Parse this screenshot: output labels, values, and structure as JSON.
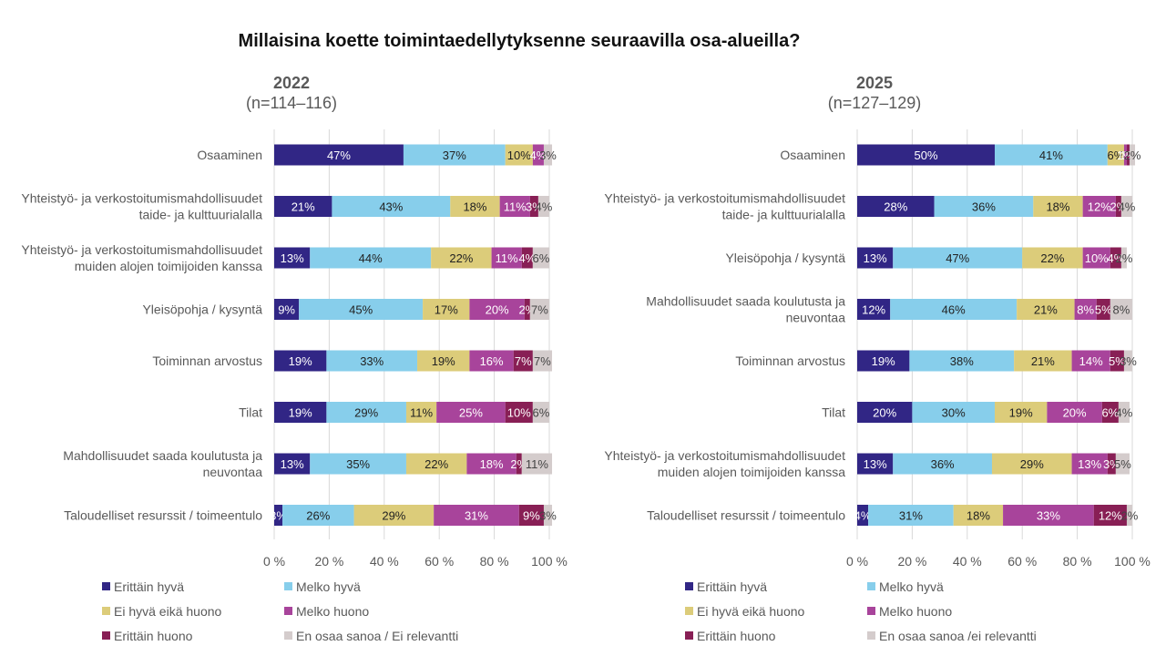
{
  "title": "Millaisina koette toimintaedellytyksenne seuraavilla osa-alueilla?",
  "chart_data": [
    {
      "type": "bar",
      "orientation": "horizontal",
      "stacked": "percent",
      "title": "2022",
      "subtitle": "(n=114–116)",
      "xlim": [
        0,
        100
      ],
      "x_ticks": [
        "0 %",
        "20 %",
        "40 %",
        "60 %",
        "80 %",
        "100 %"
      ],
      "grid": true,
      "legend_position": "bottom",
      "categories": [
        "Osaaminen",
        "Yhteistyö- ja verkostoitumismahdollisuudet taide- ja kulttuurialalla",
        "Yhteistyö- ja verkostoitumismahdollisuudet muiden alojen toimijoiden kanssa",
        "Yleisöpohja / kysyntä",
        "Toiminnan arvostus",
        "Tilat",
        "Mahdollisuudet saada koulutusta ja neuvontaa",
        "Taloudelliset resurssit / toimeentulo"
      ],
      "category_lines": [
        [
          "Osaaminen"
        ],
        [
          "Yhteistyö- ja verkostoitumismahdollisuudet",
          "taide- ja kulttuurialalla"
        ],
        [
          "Yhteistyö- ja verkostoitumismahdollisuudet",
          "muiden alojen toimijoiden kanssa"
        ],
        [
          "Yleisöpohja / kysyntä"
        ],
        [
          "Toiminnan arvostus"
        ],
        [
          "Tilat"
        ],
        [
          "Mahdollisuudet saada koulutusta ja",
          "neuvontaa"
        ],
        [
          "Taloudelliset resurssit / toimeentulo"
        ]
      ],
      "series": [
        {
          "name": "Erittäin hyvä",
          "color": "#312685",
          "label_color": "#ffffff",
          "values": [
            47,
            21,
            13,
            9,
            19,
            19,
            13,
            3
          ]
        },
        {
          "name": "Melko hyvä",
          "color": "#87ceeb",
          "label_color": "#222222",
          "values": [
            37,
            43,
            44,
            45,
            33,
            29,
            35,
            26
          ]
        },
        {
          "name": "Ei hyvä eikä huono",
          "color": "#dccc7a",
          "label_color": "#222222",
          "values": [
            10,
            18,
            22,
            17,
            19,
            11,
            22,
            29
          ]
        },
        {
          "name": "Melko huono",
          "color": "#a8449b",
          "label_color": "#ffffff",
          "values": [
            4,
            11,
            11,
            20,
            16,
            25,
            18,
            31
          ]
        },
        {
          "name": "Erittäin huono",
          "color": "#881f55",
          "label_color": "#ffffff",
          "values": [
            0,
            3,
            4,
            2,
            7,
            10,
            2,
            9
          ]
        },
        {
          "name": "En osaa sanoa / Ei relevantti",
          "color": "#d4cccc",
          "label_color": "#444444",
          "values": [
            3,
            4,
            6,
            7,
            7,
            6,
            11,
            3
          ]
        }
      ]
    },
    {
      "type": "bar",
      "orientation": "horizontal",
      "stacked": "percent",
      "title": "2025",
      "subtitle": "(n=127–129)",
      "xlim": [
        0,
        100
      ],
      "x_ticks": [
        "0 %",
        "20 %",
        "40 %",
        "60 %",
        "80 %",
        "100 %"
      ],
      "grid": true,
      "legend_position": "bottom",
      "categories": [
        "Osaaminen",
        "Yhteistyö- ja verkostoitumismahdollisuudet taide- ja kulttuurialalla",
        "Yleisöpohja / kysyntä",
        "Mahdollisuudet saada koulutusta ja neuvontaa",
        "Toiminnan arvostus",
        "Tilat",
        "Yhteistyö- ja verkostoitumismahdollisuudet muiden alojen toimijoiden kanssa",
        "Taloudelliset resurssit / toimeentulo"
      ],
      "category_lines": [
        [
          "Osaaminen"
        ],
        [
          "Yhteistyö- ja verkostoitumismahdollisuudet",
          "taide- ja kulttuurialalla"
        ],
        [
          "Yleisöpohja / kysyntä"
        ],
        [
          "Mahdollisuudet saada koulutusta ja",
          "neuvontaa"
        ],
        [
          "Toiminnan arvostus"
        ],
        [
          "Tilat"
        ],
        [
          "Yhteistyö- ja verkostoitumismahdollisuudet",
          "muiden alojen toimijoiden kanssa"
        ],
        [
          "Taloudelliset resurssit / toimeentulo"
        ]
      ],
      "series": [
        {
          "name": "Erittäin hyvä",
          "color": "#312685",
          "label_color": "#ffffff",
          "values": [
            50,
            28,
            13,
            12,
            19,
            20,
            13,
            4
          ]
        },
        {
          "name": "Melko hyvä",
          "color": "#87ceeb",
          "label_color": "#222222",
          "values": [
            41,
            36,
            47,
            46,
            38,
            30,
            36,
            31
          ]
        },
        {
          "name": "Ei hyvä eikä huono",
          "color": "#dccc7a",
          "label_color": "#222222",
          "values": [
            6,
            18,
            22,
            21,
            21,
            19,
            29,
            18
          ]
        },
        {
          "name": "Melko huono",
          "color": "#a8449b",
          "label_color": "#ffffff",
          "values": [
            1,
            12,
            10,
            8,
            14,
            20,
            13,
            33
          ]
        },
        {
          "name": "Erittäin huono",
          "color": "#881f55",
          "label_color": "#ffffff",
          "values": [
            1,
            2,
            4,
            5,
            5,
            6,
            3,
            12
          ]
        },
        {
          "name": "En osaa sanoa /ei relevantti",
          "color": "#d4cccc",
          "label_color": "#444444",
          "values": [
            2,
            4,
            2,
            8,
            3,
            4,
            5,
            2
          ]
        }
      ]
    }
  ]
}
